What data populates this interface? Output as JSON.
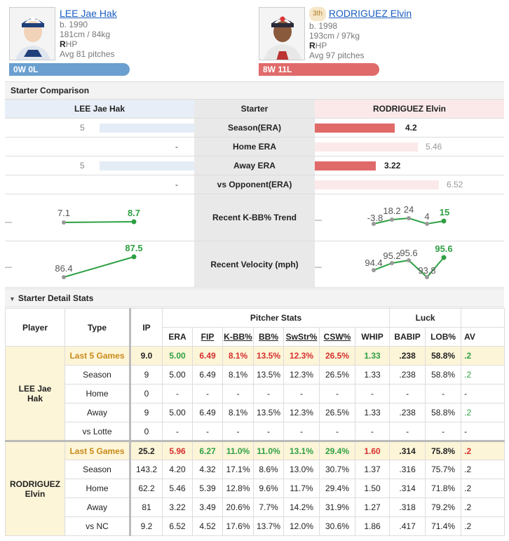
{
  "left_pitcher": {
    "name": "LEE Jae Hak",
    "born": "b. 1990",
    "body": "181cm / 84kg",
    "throws_bold": "R",
    "throws_rest": "HP",
    "avg_pitches": "Avg 81 pitches",
    "record": "0W 0L",
    "color": "#6a9fcf"
  },
  "right_pitcher": {
    "rank": "3th",
    "name": "RODRIGUEZ Elvin",
    "born": "b. 1998",
    "body": "193cm / 97kg",
    "throws_bold": "R",
    "throws_rest": "HP",
    "avg_pitches": "Avg 97 pitches",
    "record": "8W 11L",
    "color": "#e06a6a"
  },
  "comparison": {
    "title": "Starter Comparison",
    "header_left": "LEE Jae Hak",
    "header_mid": "Starter",
    "header_right": "RODRIGUEZ Elvin",
    "rows": [
      {
        "label": "Season(ERA)",
        "left": "5",
        "right": "4.2"
      },
      {
        "label": "Home ERA",
        "left": "-",
        "right": "5.46"
      },
      {
        "label": "Away ERA",
        "left": "5",
        "right": "3.22"
      },
      {
        "label": "vs Opponent(ERA)",
        "left": "-",
        "right": "6.52"
      }
    ],
    "trend_label": "Recent K-BB% Trend",
    "trend_left": [
      "7.1",
      "8.7"
    ],
    "trend_right": [
      "-3.8",
      "18.2",
      "24",
      "4",
      "15"
    ],
    "velo_label": "Recent Velocity (mph)",
    "velo_left": [
      "86.4",
      "87.5"
    ],
    "velo_right": [
      "94.4",
      "95.2",
      "95.6",
      "93.8",
      "95.6"
    ]
  },
  "detail": {
    "title": "Starter Detail Stats",
    "headers": {
      "player": "Player",
      "type": "Type",
      "ip": "IP",
      "pitcher_stats": "Pitcher Stats",
      "luck": "Luck",
      "era": "ERA",
      "fip": "FIP",
      "kbb": "K-BB%",
      "bb": "BB%",
      "swstr": "SwStr%",
      "csw": "CSW%",
      "whip": "WHIP",
      "babip": "BABIP",
      "lob": "LOB%",
      "av": "AV"
    },
    "lee_name_line1": "LEE Jae",
    "lee_name_line2": "Hak",
    "rod_name_line1": "RODRIGUEZ",
    "rod_name_line2": "Elvin",
    "lee_rows": [
      [
        "Last 5 Games",
        "9.0",
        "5.00",
        "6.49",
        "8.1%",
        "13.5%",
        "12.3%",
        "26.5%",
        "1.33",
        ".238",
        "58.8%",
        ".2"
      ],
      [
        "Season",
        "9",
        "5.00",
        "6.49",
        "8.1%",
        "13.5%",
        "12.3%",
        "26.5%",
        "1.33",
        ".238",
        "58.8%",
        ".2"
      ],
      [
        "Home",
        "0",
        "-",
        "-",
        "-",
        "-",
        "-",
        "-",
        "-",
        "-",
        "-",
        "-"
      ],
      [
        "Away",
        "9",
        "5.00",
        "6.49",
        "8.1%",
        "13.5%",
        "12.3%",
        "26.5%",
        "1.33",
        ".238",
        "58.8%",
        ".2"
      ],
      [
        "vs Lotte",
        "0",
        "-",
        "-",
        "-",
        "-",
        "-",
        "-",
        "-",
        "-",
        "-",
        "-"
      ]
    ],
    "rod_rows": [
      [
        "Last 5 Games",
        "25.2",
        "5.96",
        "6.27",
        "11.0%",
        "11.0%",
        "13.1%",
        "29.4%",
        "1.60",
        ".314",
        "75.8%",
        ".2"
      ],
      [
        "Season",
        "143.2",
        "4.20",
        "4.32",
        "17.1%",
        "8.6%",
        "13.0%",
        "30.7%",
        "1.37",
        ".316",
        "75.7%",
        ".2"
      ],
      [
        "Home",
        "62.2",
        "5.46",
        "5.39",
        "12.8%",
        "9.6%",
        "11.7%",
        "29.4%",
        "1.50",
        ".314",
        "71.8%",
        ".2"
      ],
      [
        "Away",
        "81",
        "3.22",
        "3.49",
        "20.6%",
        "7.7%",
        "14.2%",
        "31.9%",
        "1.27",
        ".318",
        "79.2%",
        ".2"
      ],
      [
        "vs NC",
        "9.2",
        "6.52",
        "4.52",
        "17.6%",
        "13.7%",
        "12.0%",
        "30.6%",
        "1.86",
        ".417",
        "71.4%",
        ".2"
      ]
    ]
  }
}
